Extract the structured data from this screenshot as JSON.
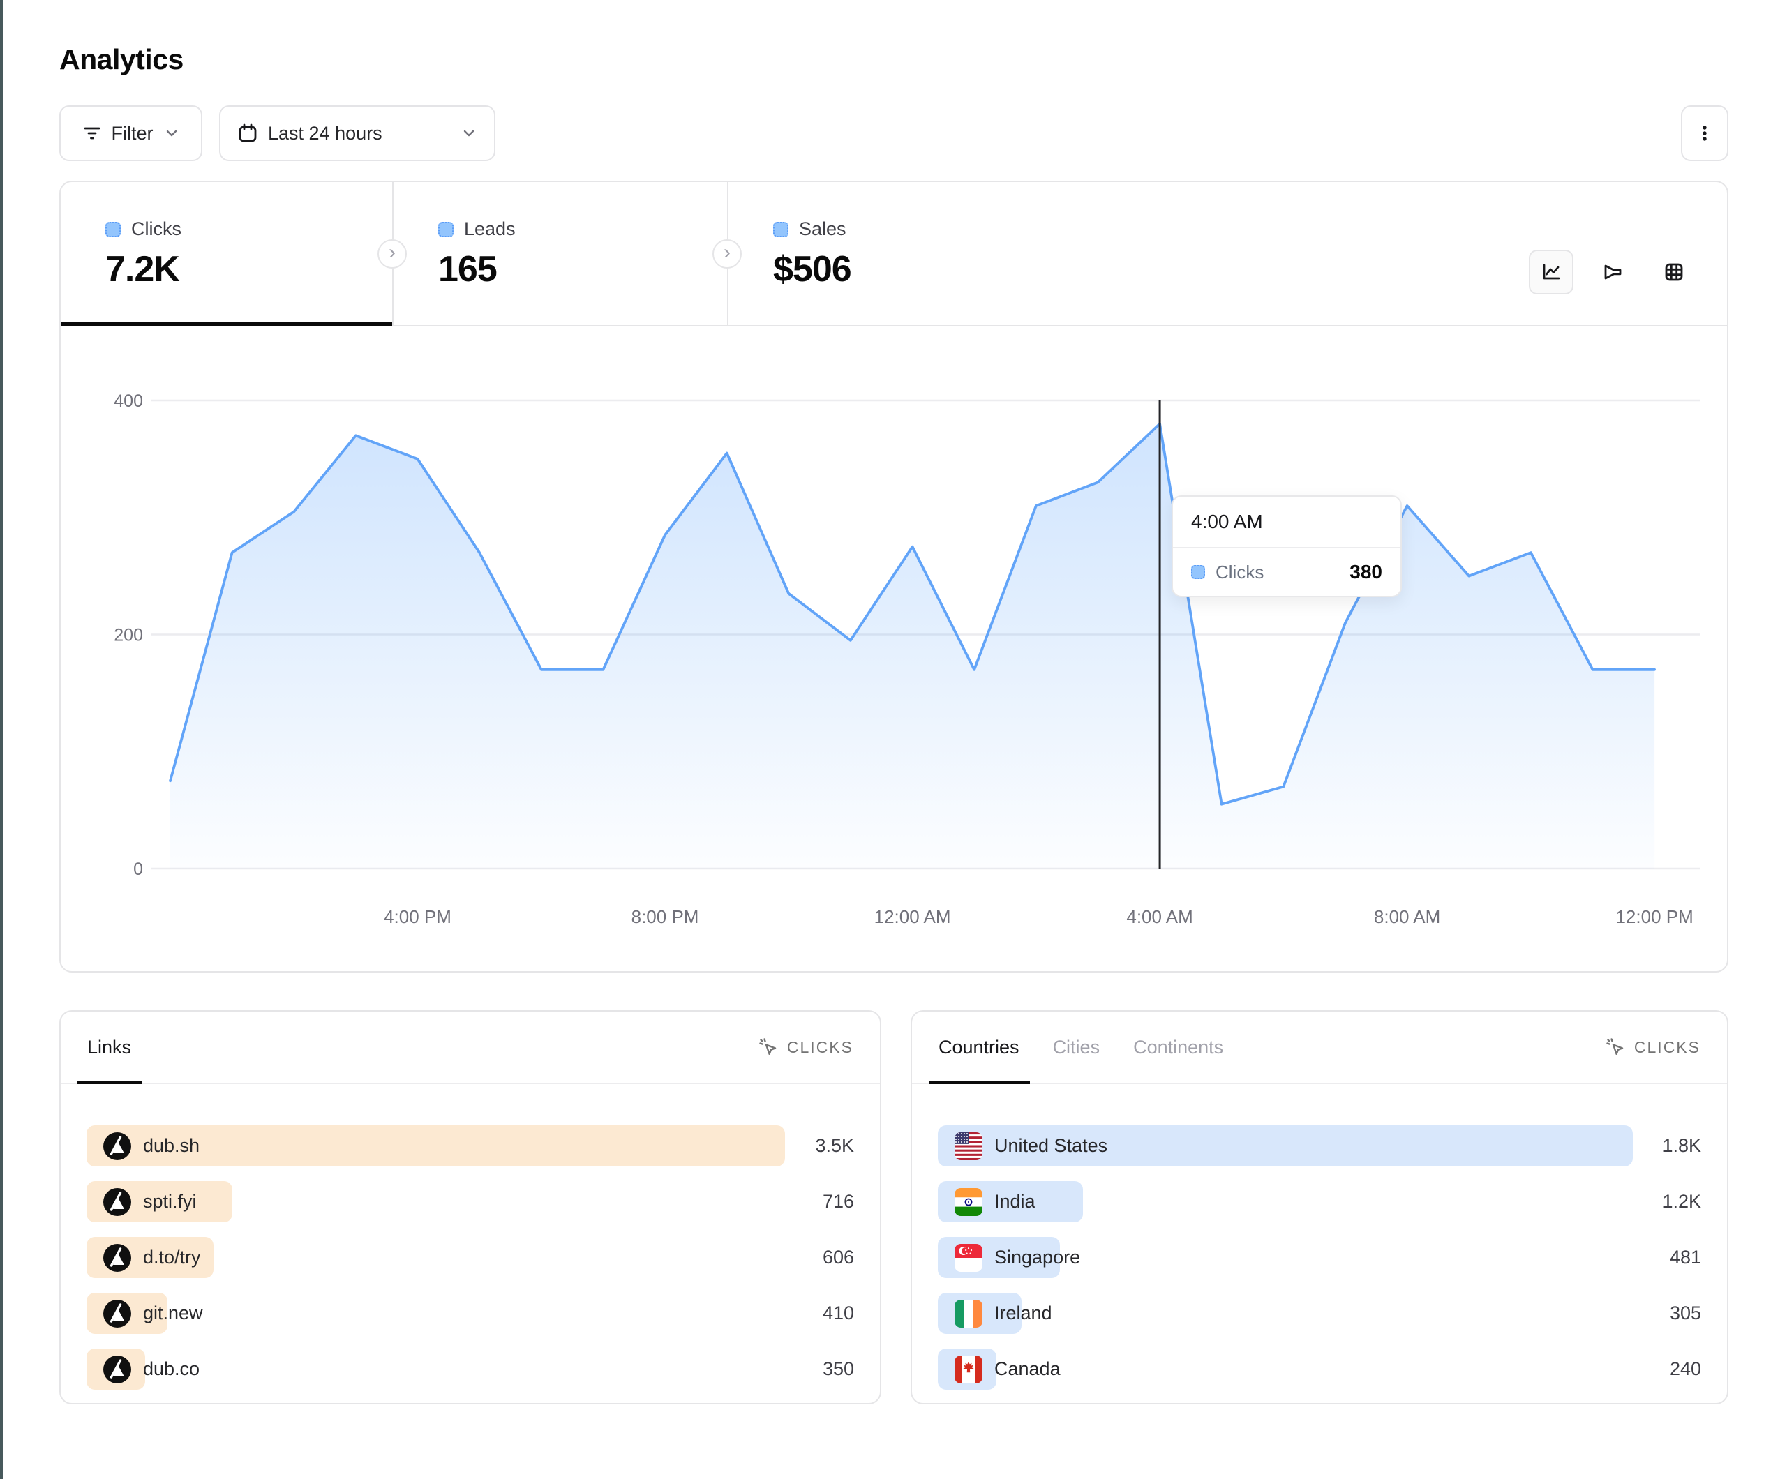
{
  "page": {
    "title": "Analytics"
  },
  "toolbar": {
    "filter_label": "Filter",
    "date_range_label": "Last 24 hours"
  },
  "icons": {
    "filter": "filter-icon",
    "date_range": "calendar-icon",
    "more": "kebab-menu-icon",
    "metric": "cursor-click-icon",
    "chart_toggles": [
      "line-chart-icon",
      "funnel-chart-icon",
      "table-grid-icon"
    ]
  },
  "stats": {
    "tabs": [
      {
        "label": "Clicks",
        "value": "7.2K",
        "active": true
      },
      {
        "label": "Leads",
        "value": "165",
        "active": false
      },
      {
        "label": "Sales",
        "value": "$506",
        "active": false
      }
    ]
  },
  "chart_data": {
    "type": "area",
    "title": "Clicks over last 24 hours",
    "x": [
      "12:00 PM",
      "1:00 PM",
      "2:00 PM",
      "3:00 PM",
      "4:00 PM",
      "5:00 PM",
      "6:00 PM",
      "7:00 PM",
      "8:00 PM",
      "9:00 PM",
      "10:00 PM",
      "11:00 PM",
      "12:00 AM",
      "1:00 AM",
      "2:00 AM",
      "3:00 AM",
      "4:00 AM",
      "5:00 AM",
      "6:00 AM",
      "7:00 AM",
      "8:00 AM",
      "9:00 AM",
      "10:00 AM",
      "11:00 AM",
      "12:00 PM"
    ],
    "series": [
      {
        "name": "Clicks",
        "values": [
          75,
          270,
          305,
          370,
          350,
          270,
          170,
          170,
          285,
          355,
          235,
          195,
          275,
          170,
          310,
          330,
          380,
          55,
          70,
          210,
          310,
          250,
          270,
          170,
          170
        ]
      }
    ],
    "ylim": [
      0,
      400
    ],
    "y_ticks": [
      "0",
      "200",
      "400"
    ],
    "x_tick_labels": [
      "4:00 PM",
      "8:00 PM",
      "12:00 AM",
      "4:00 AM",
      "8:00 AM",
      "12:00 PM"
    ],
    "x_tick_indices": [
      4,
      8,
      12,
      16,
      20,
      24
    ],
    "grid": "horizontal",
    "crosshair_index": 16,
    "tooltip": {
      "time": "4:00 AM",
      "series": "Clicks",
      "value": "380"
    }
  },
  "colors": {
    "accent_blue_line": "#62a4f8",
    "area_top": "rgba(96,165,250,0.30)",
    "area_bottom": "rgba(96,165,250,0.02)",
    "legend_swatch_fill": "#93c5fd",
    "legend_swatch_border": "#5b9cf7",
    "links_bar": "#fce9d2",
    "countries_bar": "#d8e7fb",
    "gridline": "#ececef",
    "axis_text": "#71717a",
    "crosshair": "#232427",
    "active_tab_underline": "#0a0a0a"
  },
  "links_card": {
    "tab_label": "Links",
    "metric_label": "CLICKS",
    "rows": [
      {
        "label": "dub.sh",
        "value": "3.5K",
        "bar_pct": 91,
        "icon": "dub-logo"
      },
      {
        "label": "spti.fyi",
        "value": "716",
        "bar_pct": 19,
        "icon": "dub-logo"
      },
      {
        "label": "d.to/try",
        "value": "606",
        "bar_pct": 16.5,
        "icon": "dub-logo"
      },
      {
        "label": "git.new",
        "value": "410",
        "bar_pct": 10.5,
        "icon": "dub-logo"
      },
      {
        "label": "dub.co",
        "value": "350",
        "bar_pct": 7.6,
        "icon": "dub-logo"
      }
    ]
  },
  "countries_card": {
    "tabs": [
      {
        "label": "Countries",
        "active": true
      },
      {
        "label": "Cities",
        "active": false
      },
      {
        "label": "Continents",
        "active": false
      }
    ],
    "metric_label": "CLICKS",
    "rows": [
      {
        "label": "United States",
        "value": "1.8K",
        "bar_pct": 91,
        "flag": "us"
      },
      {
        "label": "India",
        "value": "1.2K",
        "bar_pct": 19,
        "flag": "in"
      },
      {
        "label": "Singapore",
        "value": "481",
        "bar_pct": 16,
        "flag": "sg"
      },
      {
        "label": "Ireland",
        "value": "305",
        "bar_pct": 11,
        "flag": "ie"
      },
      {
        "label": "Canada",
        "value": "240",
        "bar_pct": 7.7,
        "flag": "ca"
      }
    ]
  }
}
